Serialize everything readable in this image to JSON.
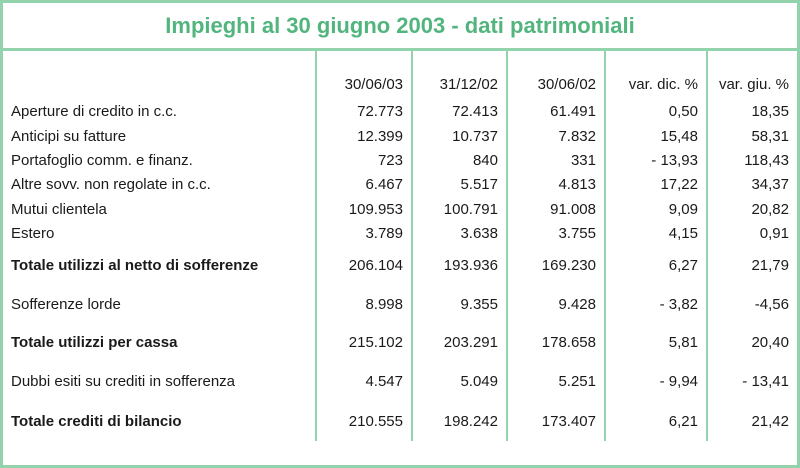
{
  "title": "Impieghi al 30 giugno 2003 - dati patrimoniali",
  "colors": {
    "border": "#93d3ac",
    "title": "#52b57e"
  },
  "columns": [
    "",
    "30/06/03",
    "31/12/02",
    "30/06/02",
    "var. dic. %",
    "var. giu. %"
  ],
  "rows": [
    {
      "label": "Aperture di credito in c.c.",
      "values": [
        "72.773",
        "72.413",
        "61.491",
        "0,50",
        "18,35"
      ],
      "bold": false
    },
    {
      "label": "Anticipi su fatture",
      "values": [
        "12.399",
        "10.737",
        "7.832",
        "15,48",
        "58,31"
      ],
      "bold": false
    },
    {
      "label": "Portafoglio comm. e finanz.",
      "values": [
        "723",
        "840",
        "331",
        "- 13,93",
        "118,43"
      ],
      "bold": false
    },
    {
      "label": "Altre sovv. non regolate in c.c.",
      "values": [
        "6.467",
        "5.517",
        "4.813",
        "17,22",
        "34,37"
      ],
      "bold": false
    },
    {
      "label": "Mutui clientela",
      "values": [
        "109.953",
        "100.791",
        "91.008",
        "9,09",
        "20,82"
      ],
      "bold": false
    },
    {
      "label": "Estero",
      "values": [
        "3.789",
        "3.638",
        "3.755",
        "4,15",
        "0,91"
      ],
      "bold": false
    },
    {
      "label": "Totale utilizzi al netto di sofferenze",
      "values": [
        "206.104",
        "193.936",
        "169.230",
        "6,27",
        "21,79"
      ],
      "bold": true
    },
    {
      "label": "Sofferenze lorde",
      "values": [
        "8.998",
        "9.355",
        "9.428",
        "- 3,82",
        "-4,56"
      ],
      "bold": false
    },
    {
      "label": "Totale utilizzi per cassa",
      "values": [
        "215.102",
        "203.291",
        "178.658",
        "5,81",
        "20,40"
      ],
      "bold": true
    },
    {
      "label": "Dubbi esiti su crediti in sofferenza",
      "values": [
        "4.547",
        "5.049",
        "5.251",
        "- 9,94",
        "- 13,41"
      ],
      "bold": false
    },
    {
      "label": "Totale crediti di bilancio",
      "values": [
        "210.555",
        "198.242",
        "173.407",
        "6,21",
        "21,42"
      ],
      "bold": true
    }
  ]
}
